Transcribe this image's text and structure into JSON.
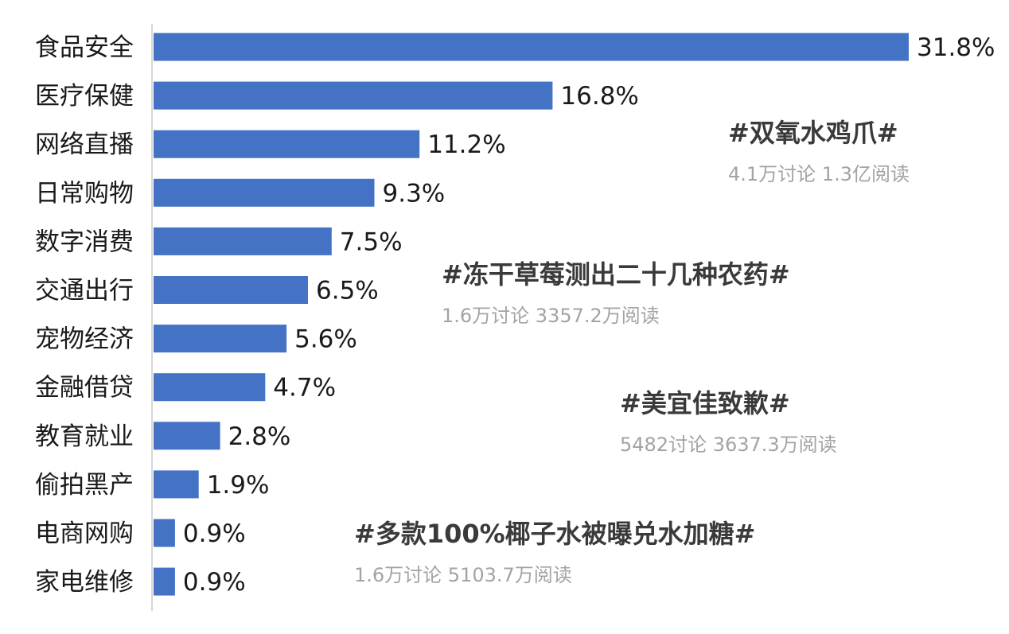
{
  "chart_data": {
    "type": "bar",
    "orientation": "horizontal",
    "categories": [
      "食品安全",
      "医疗保健",
      "网络直播",
      "日常购物",
      "数字消费",
      "交通出行",
      "宠物经济",
      "金融借贷",
      "教育就业",
      "偷拍黑产",
      "电商网购",
      "家电维修"
    ],
    "values": [
      31.8,
      16.8,
      11.2,
      9.3,
      7.5,
      6.5,
      5.6,
      4.7,
      2.8,
      1.9,
      0.9,
      0.9
    ],
    "value_labels": [
      "31.8%",
      "16.8%",
      "11.2%",
      "9.3%",
      "7.5%",
      "6.5%",
      "5.6%",
      "4.7%",
      "2.8%",
      "1.9%",
      "0.9%",
      "0.9%"
    ],
    "bar_color": "#4472c4",
    "grid": false,
    "legend": "none"
  },
  "annotations": [
    {
      "title": "#双氧水鸡爪#",
      "stats": "4.1万讨论 1.3亿阅读"
    },
    {
      "title": "#冻干草莓测出二十几种农药#",
      "stats": "1.6万讨论 3357.2万阅读"
    },
    {
      "title": "#美宜佳致歉#",
      "stats": "5482讨论 3637.3万阅读"
    },
    {
      "title": "#多款100%椰子水被曝兑水加糖#",
      "stats": "1.6万讨论 5103.7万阅读"
    }
  ],
  "colors": {
    "axis": "#c8c8c8",
    "annotation_title": "#3a3a3a",
    "annotation_stats": "#a3a3a3"
  }
}
